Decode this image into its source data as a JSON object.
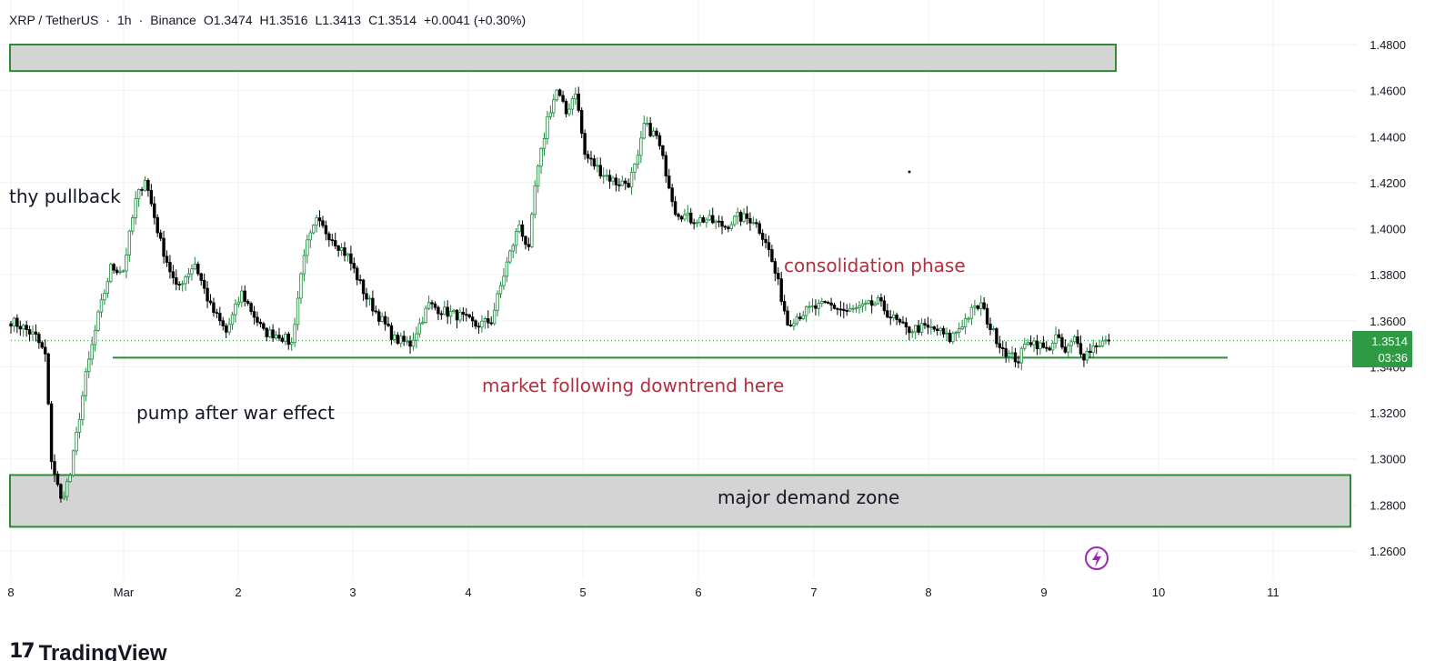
{
  "header": {
    "symbol": "XRP / TetherUS",
    "interval": "1h",
    "exchange": "Binance",
    "open": "O1.3474",
    "high": "H1.3516",
    "low": "L1.3413",
    "close": "C1.3514",
    "change": "+0.0041 (+0.30%)"
  },
  "price_label": {
    "price": "1.3514",
    "countdown": "03:36"
  },
  "brand": "TradingView",
  "colors": {
    "up": "#1a8a3a",
    "down": "#000000",
    "zone_fill": "#d4d4d4",
    "zone_border": "#2e8b3a",
    "annotation_red": "#b03040",
    "price_tag": "#2f9a44",
    "flash_icon": "#9b27b0"
  },
  "chart_data": {
    "type": "candlestick",
    "symbol": "XRP / TetherUS",
    "timeframe": "1h",
    "x_ticks": [
      "8",
      "Mar",
      "2",
      "3",
      "4",
      "5",
      "6",
      "7",
      "8",
      "9",
      "10",
      "11"
    ],
    "y_ticks": [
      "1.4800",
      "1.4600",
      "1.4400",
      "1.4200",
      "1.4000",
      "1.3800",
      "1.3600",
      "1.3400",
      "1.3200",
      "1.3000",
      "1.2800",
      "1.2600"
    ],
    "ylim": [
      1.25,
      1.495
    ],
    "last_price": 1.3514,
    "anchors": [
      [
        0,
        1.36
      ],
      [
        4,
        1.357
      ],
      [
        8,
        1.353
      ],
      [
        11,
        1.345
      ],
      [
        13,
        1.3
      ],
      [
        16,
        1.282
      ],
      [
        19,
        1.293
      ],
      [
        24,
        1.336
      ],
      [
        28,
        1.362
      ],
      [
        32,
        1.383
      ],
      [
        36,
        1.382
      ],
      [
        40,
        1.412
      ],
      [
        43,
        1.422
      ],
      [
        48,
        1.394
      ],
      [
        53,
        1.374
      ],
      [
        59,
        1.385
      ],
      [
        64,
        1.366
      ],
      [
        69,
        1.355
      ],
      [
        74,
        1.372
      ],
      [
        81,
        1.355
      ],
      [
        86,
        1.354
      ],
      [
        90,
        1.35
      ],
      [
        94,
        1.39
      ],
      [
        98,
        1.403
      ],
      [
        103,
        1.396
      ],
      [
        108,
        1.388
      ],
      [
        114,
        1.37
      ],
      [
        119,
        1.36
      ],
      [
        123,
        1.352
      ],
      [
        128,
        1.35
      ],
      [
        134,
        1.367
      ],
      [
        139,
        1.364
      ],
      [
        144,
        1.362
      ],
      [
        149,
        1.358
      ],
      [
        154,
        1.36
      ],
      [
        159,
        1.385
      ],
      [
        163,
        1.402
      ],
      [
        166,
        1.39
      ],
      [
        168,
        1.418
      ],
      [
        172,
        1.448
      ],
      [
        175,
        1.46
      ],
      [
        178,
        1.45
      ],
      [
        181,
        1.46
      ],
      [
        184,
        1.432
      ],
      [
        189,
        1.425
      ],
      [
        194,
        1.42
      ],
      [
        198,
        1.42
      ],
      [
        201,
        1.43
      ],
      [
        203,
        1.445
      ],
      [
        207,
        1.44
      ],
      [
        210,
        1.425
      ],
      [
        213,
        1.408
      ],
      [
        218,
        1.404
      ],
      [
        223,
        1.404
      ],
      [
        229,
        1.401
      ],
      [
        233,
        1.405
      ],
      [
        238,
        1.404
      ],
      [
        242,
        1.395
      ],
      [
        246,
        1.376
      ],
      [
        249,
        1.359
      ],
      [
        252,
        1.362
      ],
      [
        256,
        1.365
      ],
      [
        262,
        1.367
      ],
      [
        268,
        1.364
      ],
      [
        274,
        1.366
      ],
      [
        278,
        1.368
      ],
      [
        282,
        1.362
      ],
      [
        287,
        1.356
      ],
      [
        292,
        1.357
      ],
      [
        297,
        1.356
      ],
      [
        301,
        1.352
      ],
      [
        304,
        1.357
      ],
      [
        308,
        1.364
      ],
      [
        311,
        1.367
      ],
      [
        314,
        1.357
      ],
      [
        317,
        1.35
      ],
      [
        320,
        1.345
      ],
      [
        323,
        1.343
      ],
      [
        326,
        1.352
      ],
      [
        329,
        1.35
      ],
      [
        332,
        1.347
      ],
      [
        335,
        1.353
      ],
      [
        338,
        1.346
      ],
      [
        341,
        1.352
      ],
      [
        344,
        1.345
      ],
      [
        348,
        1.35
      ],
      [
        352,
        1.3514
      ]
    ],
    "zones": [
      {
        "type": "supply",
        "top": 1.48,
        "bottom": 1.4685
      },
      {
        "type": "demand",
        "top": 1.293,
        "bottom": 1.2705
      }
    ],
    "level_line": 1.344,
    "annotations": [
      {
        "text": "thy pullback",
        "color": "black"
      },
      {
        "text": "consolidation phase",
        "color": "red"
      },
      {
        "text": "market following downtrend here",
        "color": "red"
      },
      {
        "text": "pump after war effect",
        "color": "black"
      },
      {
        "text": "major demand zone",
        "color": "black"
      }
    ]
  }
}
